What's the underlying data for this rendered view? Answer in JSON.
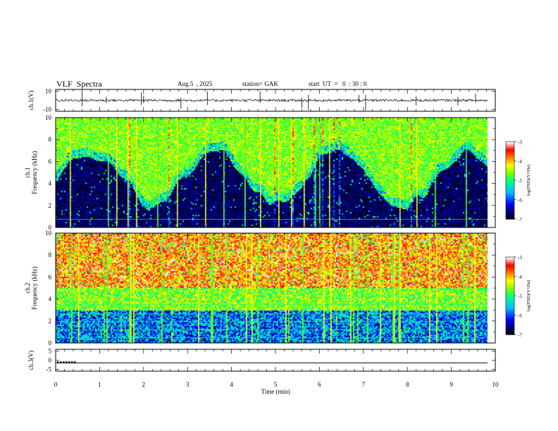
{
  "header": {
    "title": "VLF  Spectra",
    "date": "Aug.5  , 2025",
    "station": "station= GAK",
    "start": "start  UT  =   0  : 30 : 0"
  },
  "chart_data": [
    {
      "type": "line",
      "name": "ch1-waveform",
      "ylabel": "ch.1(V)",
      "ylim": [
        -10,
        10
      ],
      "yticks": [
        "10",
        "-10"
      ],
      "xlim": [
        0,
        10
      ],
      "baseline": 0,
      "description_values": "noise trace near 0 V with brief spikes",
      "spikes_min": [
        0.6,
        1.15,
        1.95,
        2.0,
        2.85,
        3.45,
        4.65,
        5.6,
        5.75,
        6.9,
        7.05,
        8.2,
        9.15,
        9.55
      ]
    },
    {
      "type": "heatmap",
      "name": "ch1-spectrogram",
      "ylabel": "ch.1\nFrequency  (kHz)",
      "ylim": [
        0,
        10
      ],
      "yticks": [
        "0",
        "2",
        "4",
        "6",
        "8",
        "10"
      ],
      "xlim": [
        0,
        9.83
      ],
      "colorbar": {
        "label": "log(PSD)(V²/Hz)",
        "ticks": [
          "-3",
          "-4",
          "-5",
          "-6",
          "-7"
        ],
        "range": [
          -7,
          -3
        ]
      },
      "background_log_psd_low_freq": -7,
      "background_log_psd_high_freq": -5
    },
    {
      "type": "heatmap",
      "name": "ch2-spectrogram",
      "ylabel": "ch.2\nFrequency  (kHz)",
      "ylim": [
        0,
        10
      ],
      "yticks": [
        "0",
        "2",
        "4",
        "6",
        "8",
        "10"
      ],
      "xlim": [
        0,
        9.83
      ],
      "colorbar": {
        "label": "log(PSD)(V²/Hz)",
        "ticks": [
          "-3",
          "-4",
          "-5",
          "-6",
          "-7"
        ],
        "range": [
          -7,
          -3
        ]
      },
      "background_log_psd_low_freq": -6.5,
      "background_log_psd_high_freq": -3.8
    },
    {
      "type": "line",
      "name": "ch3-trace",
      "ylabel": "ch.3(V)",
      "ylim": [
        -5,
        5
      ],
      "yticks": [
        "5",
        "0",
        "-5"
      ],
      "xlim": [
        0,
        10
      ],
      "value": -1.2
    }
  ],
  "xaxis": {
    "label": "Time  (min)",
    "ticks": [
      "0",
      "1",
      "2",
      "3",
      "4",
      "5",
      "6",
      "7",
      "8",
      "9",
      "10"
    ],
    "range": [
      0,
      10
    ]
  },
  "colors": {
    "scale": [
      "#000000",
      "#00007f",
      "#0000ff",
      "#00bfff",
      "#00ff7f",
      "#7fff00",
      "#ffff00",
      "#ff7f00",
      "#ff0000",
      "#ffffff"
    ]
  }
}
